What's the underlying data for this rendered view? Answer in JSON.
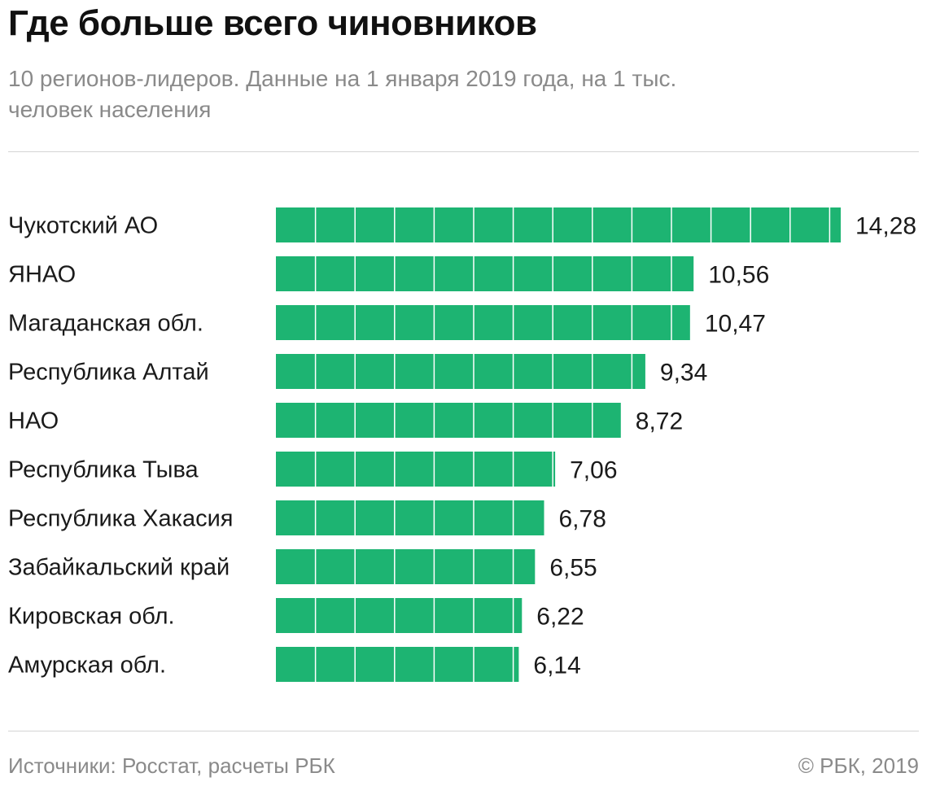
{
  "header": {
    "title": "Где больше всего чиновников",
    "subtitle": "10 регионов-лидеров. Данные на 1 января 2019 года, на 1 тыс. человек населения"
  },
  "footer": {
    "source": "Источники: Росстат, расчеты РБК",
    "copyright": "© РБК, 2019"
  },
  "colors": {
    "bar": "#1db472",
    "separator": "#ffffff"
  },
  "chart_data": {
    "type": "bar",
    "orientation": "horizontal",
    "title": "Где больше всего чиновников",
    "subtitle": "10 регионов-лидеров. Данные на 1 января 2019 года, на 1 тыс. человек населения",
    "categories": [
      "Чукотский АО",
      "ЯНАО",
      "Магаданская обл.",
      "Республика Алтай",
      "НАО",
      "Республика Тыва",
      "Республика Хакасия",
      "Забайкальский край",
      "Кировская обл.",
      "Амурская обл."
    ],
    "values": [
      14.28,
      10.56,
      10.47,
      9.34,
      8.72,
      7.06,
      6.78,
      6.55,
      6.22,
      6.14
    ],
    "value_labels": [
      "14,28",
      "10,56",
      "10,47",
      "9,34",
      "8,72",
      "7,06",
      "6,78",
      "6,55",
      "6,22",
      "6,14"
    ],
    "xlim": [
      0,
      14.28
    ],
    "segment_unit": 1,
    "grid": false,
    "legend": "none"
  }
}
